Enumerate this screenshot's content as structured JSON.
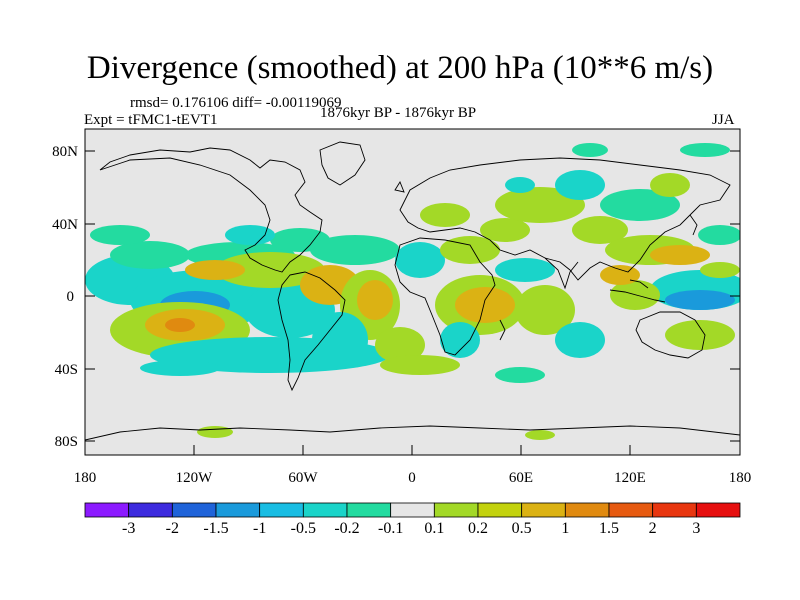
{
  "title": "Divergence (smoothed) at 200 hPa (10**6 m/s)",
  "stats": "rmsd= 0.176106 diff= -0.00119069",
  "experiment": "Expt = tFMC1-tEVT1",
  "period": "1876kyr BP - 1876kyr BP",
  "season": "JJA",
  "lat_labels": [
    "80N",
    "40N",
    "0",
    "40S",
    "80S"
  ],
  "lon_labels": [
    "180",
    "120W",
    "60W",
    "0",
    "60E",
    "120E",
    "180"
  ],
  "colorbar": {
    "labels": [
      "-3",
      "-2",
      "-1.5",
      "-1",
      "-0.5",
      "-0.2",
      "-0.1",
      "0.1",
      "0.2",
      "0.5",
      "1",
      "1.5",
      "2",
      "3"
    ],
    "colors": [
      "#8c1aff",
      "#3d2bde",
      "#1f63d9",
      "#1a9adb",
      "#19bde3",
      "#1ad4c9",
      "#23dba0",
      "#e6e6e6",
      "#a3d927",
      "#c3d20e",
      "#dbb214",
      "#e08a10",
      "#e65a10",
      "#e8360f",
      "#e60f0f"
    ]
  },
  "colors": {
    "background": "#e6e6e6",
    "coast": "#000000"
  }
}
